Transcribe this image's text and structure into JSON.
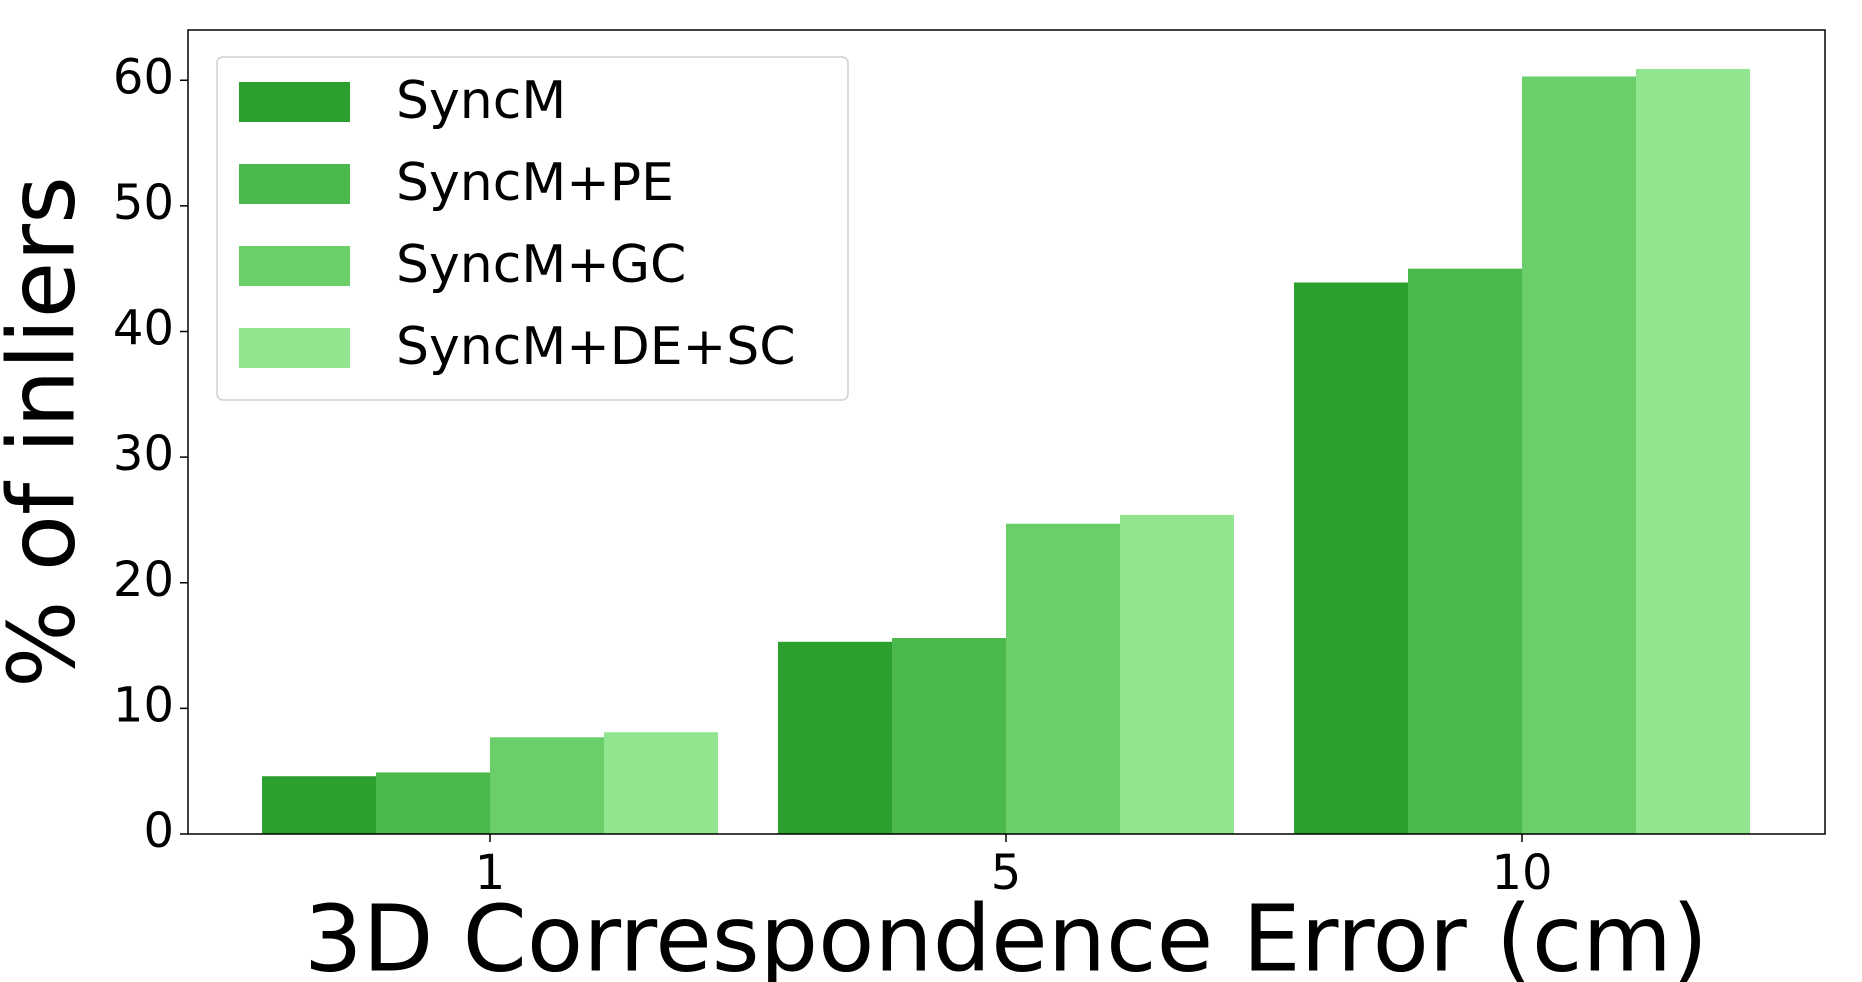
{
  "chart_data": {
    "type": "bar",
    "x_label": "3D Correspondence Error (cm)",
    "y_label": "% of inliers",
    "categories": [
      "1",
      "5",
      "10"
    ],
    "series": [
      {
        "name": "SyncM",
        "color": "#2ca02c",
        "values": [
          4.6,
          15.3,
          43.9
        ]
      },
      {
        "name": "SyncM+PE",
        "color": "#4ab84a",
        "values": [
          4.9,
          15.6,
          45.0
        ]
      },
      {
        "name": "SyncM+GC",
        "color": "#6acf6a",
        "values": [
          7.7,
          24.7,
          60.3
        ]
      },
      {
        "name": "SyncM+DE+SC",
        "color": "#92e58f",
        "values": [
          8.1,
          25.4,
          60.9
        ]
      }
    ],
    "ylim": [
      0,
      64
    ],
    "yticks": [
      0,
      10,
      20,
      30,
      40,
      50,
      60
    ],
    "grid": false,
    "legend": "upper left"
  }
}
